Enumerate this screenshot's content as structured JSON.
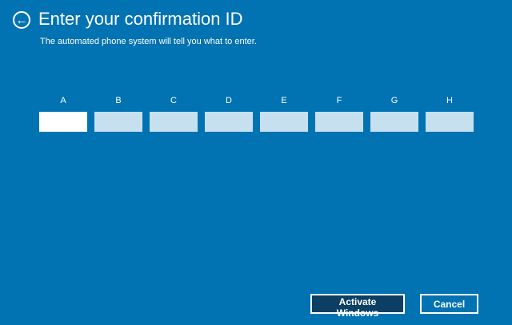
{
  "header": {
    "title": "Enter your confirmation ID",
    "subtitle": "The automated phone system will tell you what to enter.",
    "back_icon": "arrow-left-circle-icon"
  },
  "fields": [
    {
      "label": "A",
      "value": ""
    },
    {
      "label": "B",
      "value": ""
    },
    {
      "label": "C",
      "value": ""
    },
    {
      "label": "D",
      "value": ""
    },
    {
      "label": "E",
      "value": ""
    },
    {
      "label": "F",
      "value": ""
    },
    {
      "label": "G",
      "value": ""
    },
    {
      "label": "H",
      "value": ""
    }
  ],
  "buttons": {
    "activate": "Activate Windows",
    "cancel": "Cancel"
  },
  "colors": {
    "background": "#0173b2",
    "primary_button": "#0b3f63",
    "inactive_field": "#c6e0ef"
  }
}
